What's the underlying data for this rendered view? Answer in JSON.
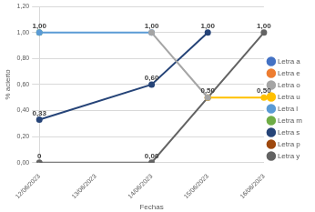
{
  "chart_data": {
    "type": "line",
    "x_label": "Fechas",
    "y_label": "% acierto",
    "categories": [
      "12/06/2023",
      "13/06/2023",
      "14/06/2023",
      "15/06/2023",
      "16/06/2023"
    ],
    "ylim": [
      0,
      1.2
    ],
    "yticks": [
      {
        "value": 0,
        "label": "0,00"
      },
      {
        "value": 0.2,
        "label": "0,20"
      },
      {
        "value": 0.4,
        "label": "0,40"
      },
      {
        "value": 0.6,
        "label": "0,60"
      },
      {
        "value": 0.8,
        "label": "0,80"
      },
      {
        "value": 1.0,
        "label": "1,00"
      },
      {
        "value": 1.2,
        "label": "1,20"
      }
    ],
    "grid": true,
    "legend": "right",
    "data_labels": true,
    "marker": "circle",
    "series": [
      {
        "name": "Letra a",
        "color": "#4472c4",
        "values": [
          null,
          null,
          null,
          null,
          null
        ],
        "value_labels": [
          null,
          null,
          null,
          null,
          null
        ]
      },
      {
        "name": "Letra e",
        "color": "#ed7d31",
        "values": [
          null,
          null,
          null,
          null,
          null
        ],
        "value_labels": [
          null,
          null,
          null,
          null,
          null
        ]
      },
      {
        "name": "Letra o",
        "color": "#a5a5a5",
        "values": [
          null,
          null,
          1.0,
          0.5,
          null
        ],
        "value_labels": [
          null,
          null,
          "1,00",
          null,
          null
        ]
      },
      {
        "name": "Letra u",
        "color": "#ffc000",
        "values": [
          null,
          null,
          null,
          0.5,
          0.5
        ],
        "value_labels": [
          null,
          null,
          null,
          null,
          "0,50"
        ]
      },
      {
        "name": "Letra l",
        "color": "#5b9bd5",
        "values": [
          1.0,
          null,
          1.0,
          null,
          null
        ],
        "value_labels": [
          "1,00",
          null,
          null,
          null,
          null
        ]
      },
      {
        "name": "Letra m",
        "color": "#70ad47",
        "values": [
          1.0,
          null,
          null,
          null,
          null
        ],
        "value_labels": [
          null,
          null,
          null,
          null,
          null
        ]
      },
      {
        "name": "Letra s",
        "color": "#264478",
        "values": [
          0.33,
          null,
          0.6,
          1.0,
          null
        ],
        "value_labels": [
          "0,33",
          null,
          "0,60",
          "1,00",
          null
        ]
      },
      {
        "name": "Letra p",
        "color": "#9e480e",
        "values": [
          null,
          null,
          null,
          0.5,
          null
        ],
        "value_labels": [
          null,
          null,
          null,
          "0,50",
          null
        ]
      },
      {
        "name": "Letra y",
        "color": "#636363",
        "values": [
          0,
          null,
          0,
          null,
          1.0
        ],
        "value_labels": [
          "0",
          null,
          "0,00",
          null,
          "1,00"
        ]
      }
    ]
  }
}
